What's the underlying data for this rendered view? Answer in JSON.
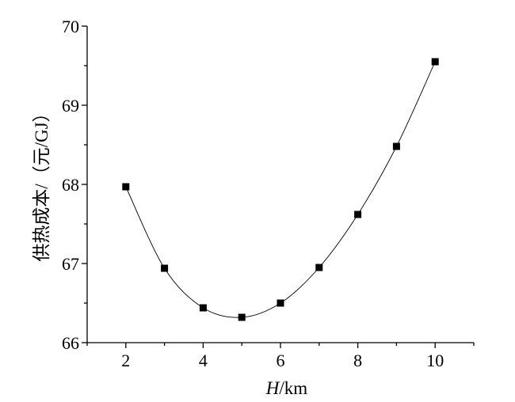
{
  "chart_data": {
    "type": "line",
    "xlabel_italic": "H",
    "xlabel_unit": "/km",
    "ylabel": "供热成本/（元/GJ）",
    "xlim": [
      1,
      11
    ],
    "ylim": [
      66,
      70
    ],
    "x_ticks": [
      2,
      4,
      6,
      8,
      10
    ],
    "y_ticks": [
      66,
      67,
      68,
      69,
      70
    ],
    "grid": false,
    "series": [
      {
        "x": [
          2,
          3,
          4,
          5,
          6,
          7,
          8,
          9,
          10
        ],
        "values": [
          67.97,
          66.94,
          66.44,
          66.32,
          66.5,
          66.95,
          67.62,
          68.48,
          69.55
        ]
      }
    ]
  }
}
